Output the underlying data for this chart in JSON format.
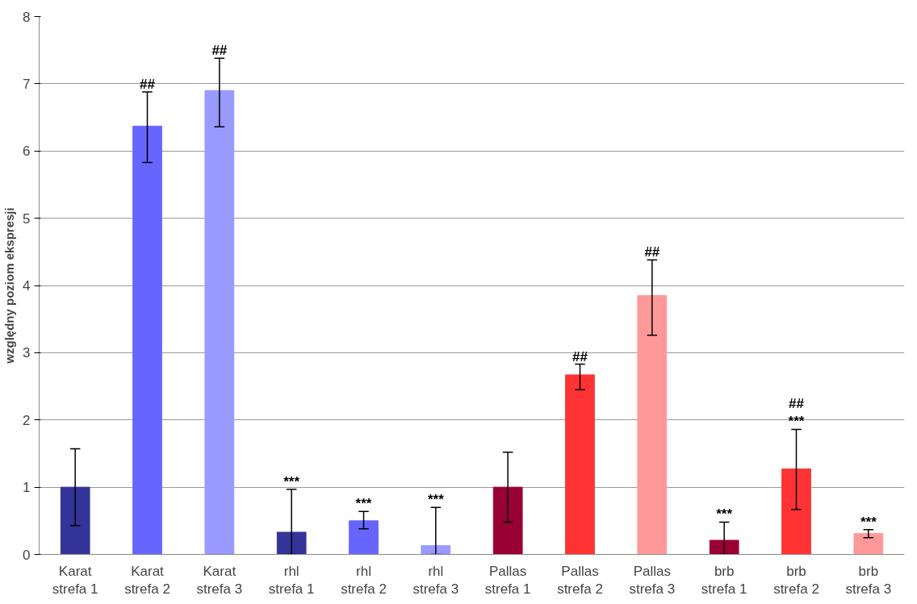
{
  "chart_data": {
    "type": "bar",
    "ylabel": "względny poziom ekspresji",
    "categories": [
      "Karat\nstrefa 1",
      "Karat\nstrefa 2",
      "Karat\nstrefa 3",
      "rhl\nstrefa 1",
      "rhl\nstrefa 2",
      "rhl\nstrefa 3",
      "Pallas\nstrefa 1",
      "Pallas\nstrefa 2",
      "Pallas\nstrefa 3",
      "brb\nstrefa 1",
      "brb\nstrefa 2",
      "brb\nstrefa 3"
    ],
    "values": [
      1.0,
      6.37,
      6.9,
      0.33,
      0.5,
      0.13,
      1.0,
      2.67,
      3.85,
      0.21,
      1.27,
      0.31
    ],
    "colors": [
      "#333399",
      "#6666ff",
      "#9999ff",
      "#333399",
      "#6666ff",
      "#9999ff",
      "#990033",
      "#ff3333",
      "#ff9999",
      "#990033",
      "#ff3333",
      "#ff9999"
    ],
    "errors": [
      [
        0.43,
        1.57
      ],
      [
        5.83,
        6.88
      ],
      [
        6.36,
        7.38
      ],
      [
        0,
        0.97
      ],
      [
        0.38,
        0.64
      ],
      [
        0,
        0.7
      ],
      [
        0.48,
        1.52
      ],
      [
        2.45,
        2.83
      ],
      [
        3.26,
        4.38
      ],
      [
        0,
        0.48
      ],
      [
        0.67,
        1.86
      ],
      [
        0.25,
        0.37
      ]
    ],
    "value_labels": [
      null,
      "##",
      "##",
      "***",
      "***",
      "***",
      null,
      "##",
      "##",
      "***",
      "##\n***",
      "***"
    ],
    "ylim": [
      0,
      8
    ],
    "yticks": [
      0,
      1,
      2,
      3,
      4,
      5,
      6,
      7,
      8
    ],
    "grid": "y"
  }
}
